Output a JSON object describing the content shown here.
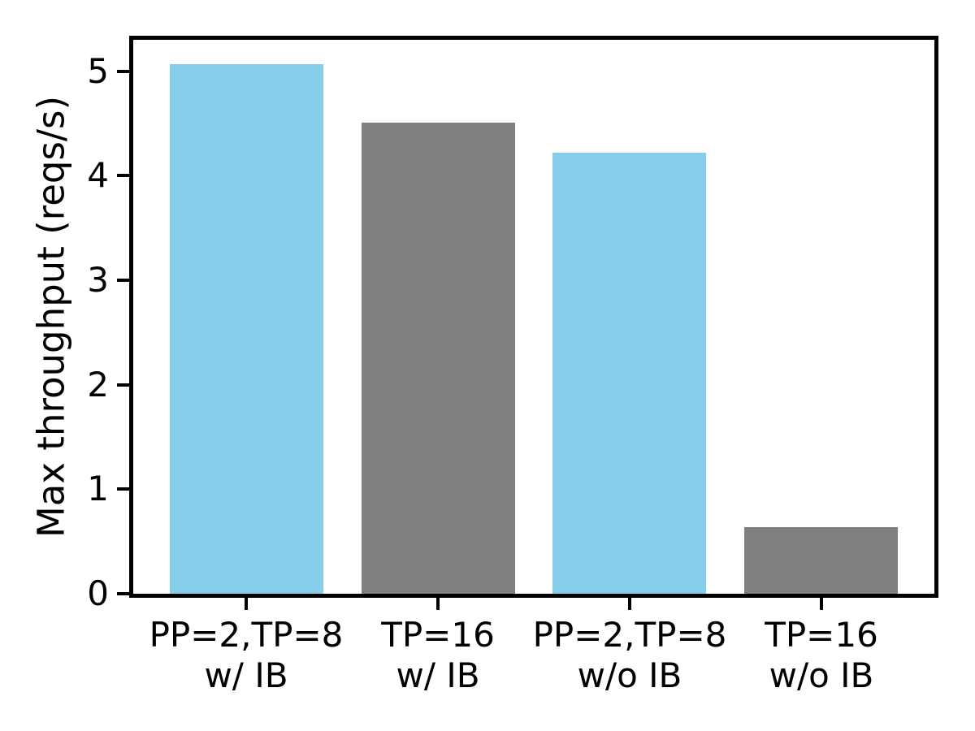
{
  "chart_data": {
    "type": "bar",
    "title": "",
    "xlabel": "",
    "ylabel": "Max throughput (reqs/s)",
    "categories": [
      "PP=2,TP=8\nw/ IB",
      "TP=16\nw/ IB",
      "PP=2,TP=8\nw/o IB",
      "TP=16\nw/o IB"
    ],
    "category_lines": [
      [
        "PP=2,TP=8",
        "w/ IB"
      ],
      [
        "TP=16",
        "w/ IB"
      ],
      [
        "PP=2,TP=8",
        "w/o IB"
      ],
      [
        "TP=16",
        "w/o IB"
      ]
    ],
    "values": [
      5.07,
      4.51,
      4.22,
      0.64
    ],
    "bar_colors": [
      "#87CEEB",
      "#808080",
      "#87CEEB",
      "#808080"
    ],
    "yticks": [
      0,
      1,
      2,
      3,
      4,
      5
    ],
    "ytick_labels": [
      "0",
      "1",
      "2",
      "3",
      "4",
      "5"
    ],
    "ylim": [
      0,
      5.3
    ],
    "xlim": [
      -0.59,
      3.59
    ],
    "bar_width": 0.8,
    "grid": false,
    "legend": null,
    "colors": {
      "highlight_bar": "#87CEEB",
      "baseline_bar": "#808080",
      "axis": "#000000",
      "background": "#ffffff"
    }
  }
}
